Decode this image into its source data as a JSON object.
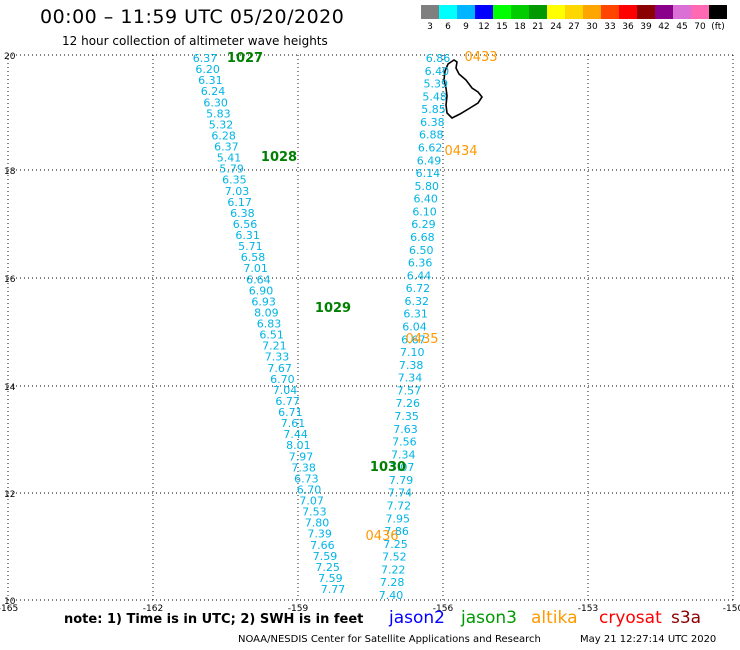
{
  "header": {
    "title": "00:00 – 11:59 UTC 05/20/2020",
    "subtitle": "12 hour collection of altimeter wave heights"
  },
  "colorbar": {
    "labels": [
      "3",
      "6",
      "9",
      "12",
      "15",
      "18",
      "21",
      "24",
      "27",
      "30",
      "33",
      "36",
      "39",
      "42",
      "45",
      "70",
      "(ft)"
    ],
    "colors": [
      "#7f7f7f",
      "#00ffff",
      "#00b4ff",
      "#0000ff",
      "#00ff00",
      "#00cc00",
      "#009900",
      "#ffff00",
      "#ffd700",
      "#ffa500",
      "#ff4500",
      "#ff0000",
      "#8b0000",
      "#8b008b",
      "#da70d6",
      "#ff69b4",
      "#000000"
    ]
  },
  "axes": {
    "lon_labels": [
      "-165",
      "-162",
      "-159",
      "-156",
      "-153",
      "-150"
    ],
    "lat_labels": [
      "20",
      "18",
      "16",
      "14",
      "12",
      "10"
    ]
  },
  "tracks": {
    "left_values": [
      "6.37",
      "6.20",
      "6.31",
      "6.24",
      "6.30",
      "5.83",
      "5.32",
      "6.28",
      "6.37",
      "5.41",
      "5.79",
      "6.35",
      "7.03",
      "6.17",
      "6.38",
      "6.56",
      "6.31",
      "5.71",
      "6.58",
      "7.01",
      "6.64",
      "6.90",
      "6.93",
      "8.09",
      "6.83",
      "6.51",
      "7.21",
      "7.33",
      "7.67",
      "6.70",
      "7.04",
      "6.77",
      "6.71",
      "7.61",
      "7.44",
      "8.01",
      "7.97",
      "7.38",
      "6.73",
      "6.70",
      "7.07",
      "7.53",
      "7.80",
      "7.39",
      "7.66",
      "7.59",
      "7.25",
      "7.59",
      "7.77"
    ],
    "right_values": [
      "6.86",
      "6.40",
      "5.39",
      "5.48",
      "5.85",
      "6.38",
      "6.88",
      "6.62",
      "6.49",
      "6.14",
      "5.80",
      "6.40",
      "6.10",
      "6.29",
      "6.68",
      "6.50",
      "6.36",
      "6.44",
      "6.72",
      "6.32",
      "6.31",
      "6.04",
      "6.67",
      "7.10",
      "7.38",
      "7.34",
      "7.57",
      "7.26",
      "7.35",
      "7.63",
      "7.56",
      "7.34",
      "7.07",
      "7.79",
      "7.74",
      "7.72",
      "7.95",
      "7.86",
      "7.25",
      "7.52",
      "7.22",
      "7.28",
      "7.40"
    ],
    "pass_labels_green": [
      {
        "text": "1027"
      },
      {
        "text": "1028"
      },
      {
        "text": "1029"
      },
      {
        "text": "1030"
      }
    ],
    "pass_labels_orange": [
      {
        "text": "0433"
      },
      {
        "text": "0434"
      },
      {
        "text": "0435"
      },
      {
        "text": "0436"
      }
    ],
    "value_color": "#00b4e6",
    "green_color": "#008000",
    "orange_color": "#ff9900"
  },
  "footer": {
    "note": "note: 1) Time is in UTC; 2) SWH is in feet",
    "satellites": [
      {
        "name": "jason2",
        "color": "#0000ff"
      },
      {
        "name": "jason3",
        "color": "#009900"
      },
      {
        "name": "altika",
        "color": "#ff9900"
      },
      {
        "name": "cryosat",
        "color": "#ff0000"
      },
      {
        "name": "s3a",
        "color": "#8b0000"
      }
    ],
    "credit": "NOAA/NESDIS Center for Satellite Applications and Research",
    "timestamp": "May 21 12:27:14 UTC 2020"
  }
}
